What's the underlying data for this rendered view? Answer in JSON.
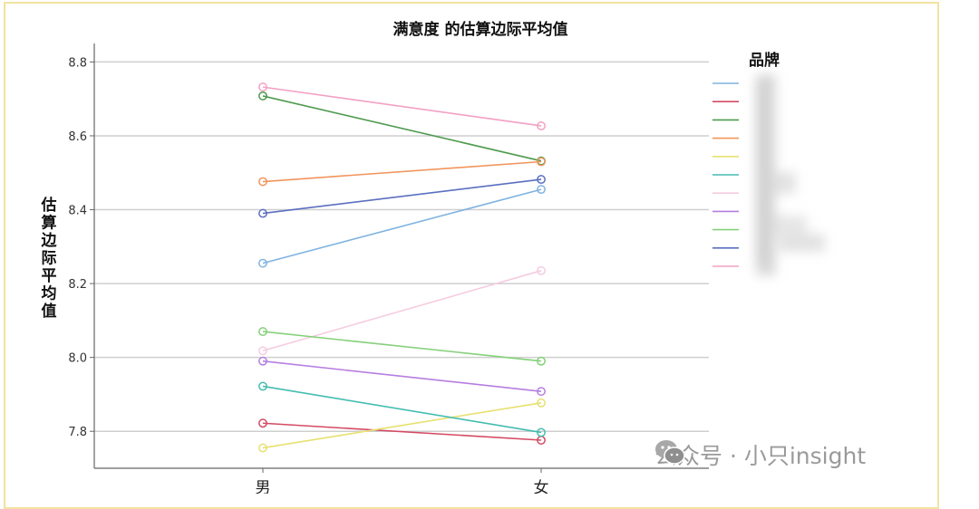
{
  "chart_data": {
    "type": "line",
    "title": "满意度 的估算边际平均值",
    "xlabel": "",
    "ylabel": "估算边际平均值",
    "categories": [
      "男",
      "女"
    ],
    "ylim": [
      7.7,
      8.85
    ],
    "yticks": [
      "7.8",
      "8.0",
      "8.2",
      "8.4",
      "8.6",
      "8.8"
    ],
    "grid": true,
    "legend_title": "品牌",
    "legend_position": "right",
    "series": [
      {
        "color": "#7fb3e0",
        "values": [
          8.255,
          8.455
        ]
      },
      {
        "color": "#d44a63",
        "values": [
          7.822,
          7.776
        ]
      },
      {
        "color": "#4f9a4f",
        "values": [
          8.708,
          8.532
        ]
      },
      {
        "color": "#f0955c",
        "values": [
          8.476,
          8.53
        ]
      },
      {
        "color": "#e8e070",
        "values": [
          7.755,
          7.877
        ]
      },
      {
        "color": "#45bcb0",
        "values": [
          7.922,
          7.797
        ]
      },
      {
        "color": "#f5cce0",
        "values": [
          8.018,
          8.235
        ]
      },
      {
        "color": "#b57ee0",
        "values": [
          7.99,
          7.908
        ]
      },
      {
        "color": "#85d07a",
        "values": [
          8.07,
          7.99
        ]
      },
      {
        "color": "#5a6fc0",
        "values": [
          8.39,
          8.482
        ]
      },
      {
        "color": "#f3a0c4",
        "values": [
          8.732,
          8.627
        ]
      }
    ]
  },
  "watermark": {
    "text": "公众号 · 小只insight",
    "icon": "wechat-icon"
  }
}
